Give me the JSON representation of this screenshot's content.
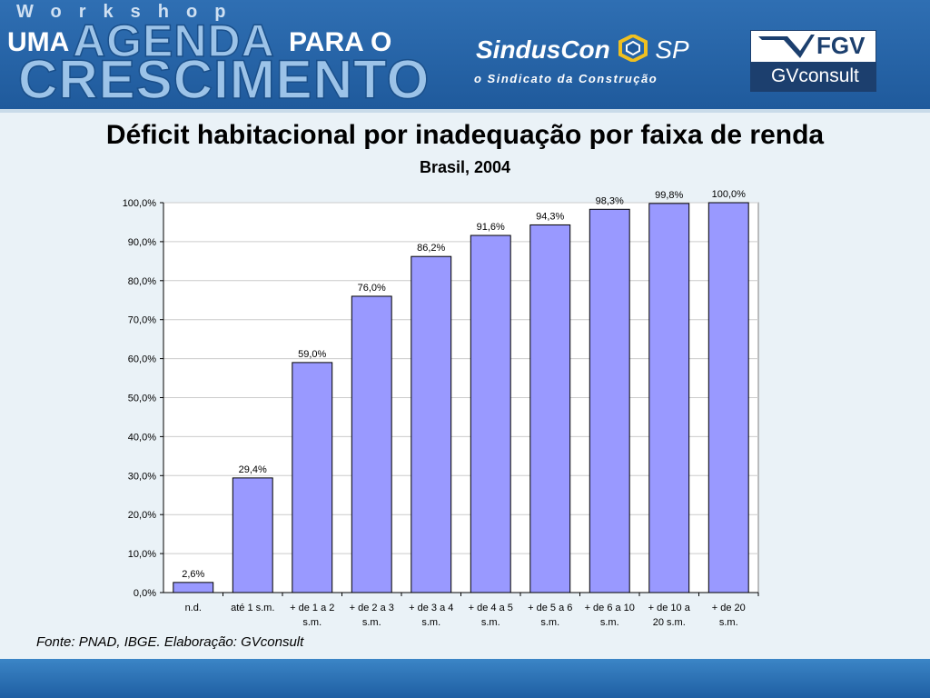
{
  "header": {
    "workshop": "Workshop",
    "uma": "UMA",
    "agenda": "AGENDA",
    "para_o": "PARA O",
    "crescimento": "CRESCIMENTO",
    "sinduscon": "SindusCon",
    "sp": "SP",
    "sindicato": "o Sindicato da Construção",
    "fgv": "FGV",
    "gvconsult": "GVconsult"
  },
  "colors": {
    "bar": "#9999ff",
    "bar_stroke": "#000000",
    "banner": "#1f5a9c"
  },
  "chart_data": {
    "type": "bar",
    "title": "Déficit habitacional por inadequação por faixa de renda",
    "subtitle": "Brasil, 2004",
    "categories": [
      [
        "n.d."
      ],
      [
        "até 1 s.m."
      ],
      [
        "+ de 1 a 2",
        "s.m."
      ],
      [
        "+ de 2 a 3",
        "s.m."
      ],
      [
        "+ de 3 a 4",
        "s.m."
      ],
      [
        "+ de 4 a 5",
        "s.m."
      ],
      [
        "+ de 5 a 6",
        "s.m."
      ],
      [
        "+ de 6 a 10",
        "s.m."
      ],
      [
        "+ de 10 a",
        "20 s.m."
      ],
      [
        "+ de 20",
        "s.m."
      ]
    ],
    "values": [
      2.6,
      29.4,
      59.0,
      76.0,
      86.2,
      91.6,
      94.3,
      98.3,
      99.8,
      100.0
    ],
    "value_labels": [
      "2,6%",
      "29,4%",
      "59,0%",
      "76,0%",
      "86,2%",
      "91,6%",
      "94,3%",
      "98,3%",
      "99,8%",
      "100,0%"
    ],
    "yticks": [
      0,
      10,
      20,
      30,
      40,
      50,
      60,
      70,
      80,
      90,
      100
    ],
    "ytick_labels": [
      "0,0%",
      "10,0%",
      "20,0%",
      "30,0%",
      "40,0%",
      "50,0%",
      "60,0%",
      "70,0%",
      "80,0%",
      "90,0%",
      "100,0%"
    ],
    "ylim": [
      0,
      100
    ],
    "xlabel": "",
    "ylabel": "",
    "grid": true,
    "legend": "none",
    "source": "Fonte: PNAD, IBGE. Elaboração: GVconsult"
  }
}
